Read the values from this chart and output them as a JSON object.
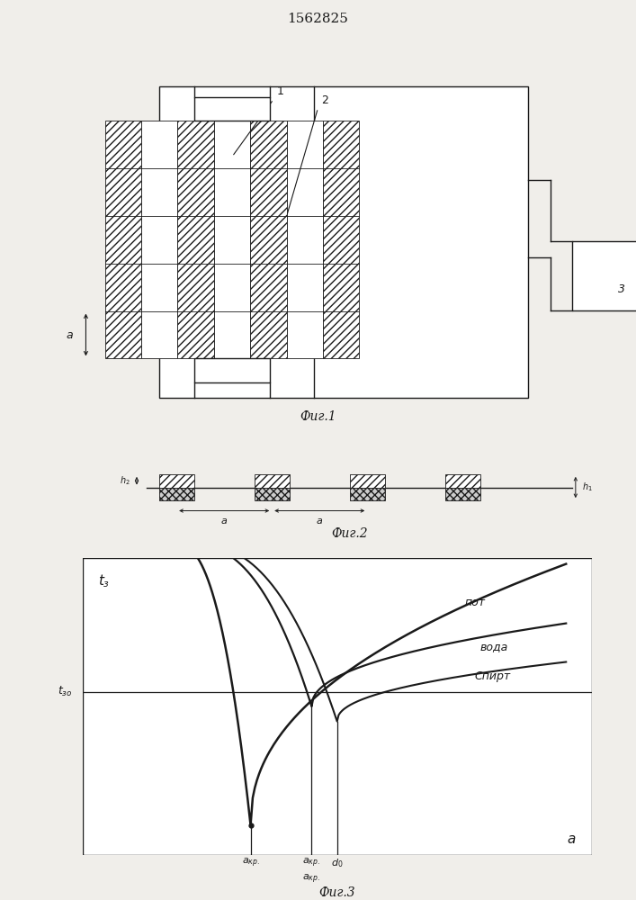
{
  "title": "1562825",
  "fig1_caption": "Фиг.1",
  "fig2_caption": "Фиг.2",
  "fig3_caption": "Фиг.3",
  "bg_color": "#f0eeea",
  "line_color": "#1a1a1a",
  "label_pot": "пот",
  "label_voda": "вода",
  "label_spirt": "Спирт",
  "label_1": "1",
  "label_2": "2",
  "label_3": "3"
}
